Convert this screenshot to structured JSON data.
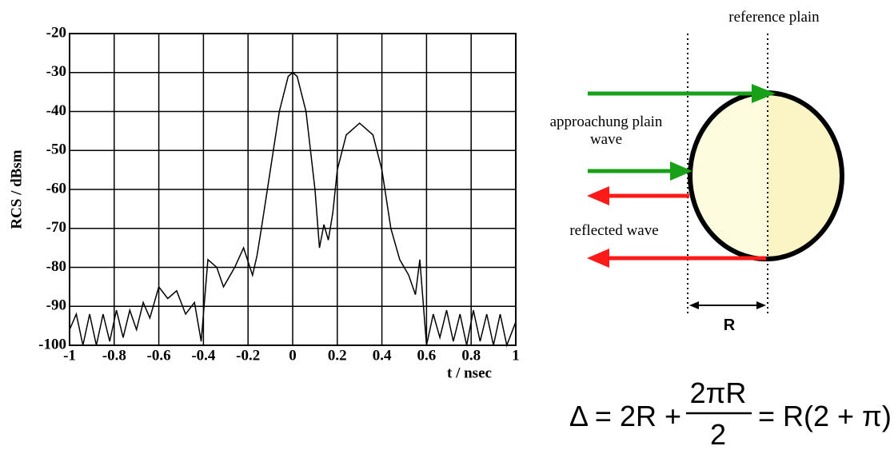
{
  "chart_data": {
    "type": "line",
    "x_label": "t / nsec",
    "y_label": "RCS / dBsm",
    "color": "#000000",
    "x": [
      -1,
      -0.97,
      -0.94,
      -0.91,
      -0.88,
      -0.85,
      -0.82,
      -0.79,
      -0.76,
      -0.73,
      -0.7,
      -0.67,
      -0.64,
      -0.6,
      -0.56,
      -0.52,
      -0.48,
      -0.44,
      -0.41,
      -0.38,
      -0.34,
      -0.31,
      -0.26,
      -0.22,
      -0.18,
      -0.16,
      -0.14,
      -0.1,
      -0.06,
      -0.02,
      0,
      0.02,
      0.06,
      0.1,
      0.12,
      0.14,
      0.16,
      0.18,
      0.2,
      0.24,
      0.3,
      0.36,
      0.4,
      0.44,
      0.48,
      0.52,
      0.55,
      0.57,
      0.6,
      0.63,
      0.66,
      0.69,
      0.72,
      0.75,
      0.78,
      0.81,
      0.84,
      0.87,
      0.9,
      0.93,
      0.96,
      1
    ],
    "values": [
      -96,
      -92,
      -100,
      -92,
      -100,
      -92,
      -99,
      -91,
      -98,
      -91,
      -96,
      -89,
      -93,
      -85,
      -88,
      -86,
      -92,
      -89,
      -99,
      -78,
      -80,
      -85,
      -80,
      -75,
      -82,
      -77,
      -70,
      -55,
      -40,
      -31,
      -30,
      -31,
      -40,
      -60,
      -75,
      -69,
      -73,
      -66,
      -55,
      -46,
      -43,
      -46,
      -55,
      -70,
      -78,
      -82,
      -87,
      -78,
      -100,
      -92,
      -98,
      -91,
      -99,
      -92,
      -100,
      -91,
      -99,
      -92,
      -100,
      -92,
      -100,
      -94
    ],
    "xlim": [
      -1,
      1
    ],
    "xticks": [
      -1,
      -0.8,
      -0.6,
      -0.4,
      -0.2,
      0,
      0.2,
      0.4,
      0.6,
      0.8,
      1
    ],
    "ylim": [
      -100,
      -20
    ],
    "yticks": [
      -100,
      -90,
      -80,
      -70,
      -60,
      -50,
      -40,
      -30,
      -20
    ],
    "grid": true
  },
  "diagram": {
    "reference_label": "reference plain",
    "approaching_label": [
      "approachung plain",
      "wave"
    ],
    "reflected_label": "reflected wave",
    "distance_label": "R"
  },
  "formula": {
    "lhs": "Δ = 2R +",
    "numerator": "2πR",
    "denominator": "2",
    "rhs": "= R(2 + π)"
  }
}
